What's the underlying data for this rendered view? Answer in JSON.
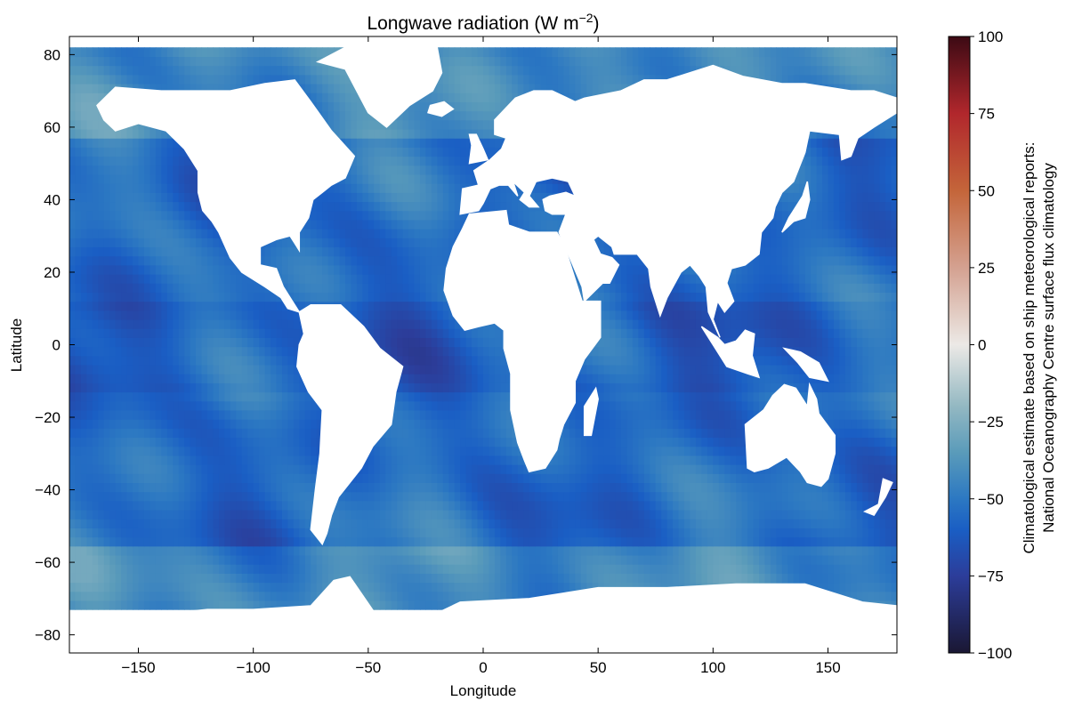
{
  "chart_data": {
    "type": "heatmap",
    "title": "Longwave radiation (W m⁻²)",
    "title_main": "Longwave radiation (W m",
    "title_exp": "−2",
    "title_close": ")",
    "xlabel": "Longitude",
    "ylabel": "Latitude",
    "xlim": [
      -180,
      180
    ],
    "ylim": [
      -85,
      85
    ],
    "xticks": [
      -150,
      -100,
      -50,
      0,
      50,
      100,
      150
    ],
    "yticks": [
      -80,
      -60,
      -40,
      -20,
      0,
      20,
      40,
      60,
      80
    ],
    "xtick_labels": [
      "−150",
      "−100",
      "−50",
      "0",
      "50",
      "100",
      "150"
    ],
    "ytick_labels": [
      "−80",
      "−60",
      "−40",
      "−20",
      "0",
      "20",
      "40",
      "60",
      "80"
    ],
    "colorbar": {
      "label_line1": "Climatological estimate based on ship meteorological reports:",
      "label_line2": "National Oceanography Centre surface flux climatology",
      "range": [
        -100,
        100
      ],
      "ticks": [
        -100,
        -75,
        -50,
        -25,
        0,
        25,
        50,
        75,
        100
      ],
      "tick_labels": [
        "−100",
        "−75",
        "−50",
        "−25",
        "0",
        "25",
        "50",
        "75",
        "100"
      ],
      "colormap_stops": [
        {
          "value": -100,
          "color": "#1a1733"
        },
        {
          "value": -75,
          "color": "#2c3d9a"
        },
        {
          "value": -60,
          "color": "#1a5ec4"
        },
        {
          "value": -50,
          "color": "#2c78c2"
        },
        {
          "value": -35,
          "color": "#5a9bba"
        },
        {
          "value": -20,
          "color": "#93b8c2"
        },
        {
          "value": 0,
          "color": "#ece9e6"
        },
        {
          "value": 25,
          "color": "#d4a190"
        },
        {
          "value": 50,
          "color": "#c4653a"
        },
        {
          "value": 75,
          "color": "#b1272c"
        },
        {
          "value": 100,
          "color": "#3c0a14"
        }
      ]
    },
    "ocean_value_range": [
      -78,
      -28
    ],
    "typical_ocean_value": -55
  }
}
